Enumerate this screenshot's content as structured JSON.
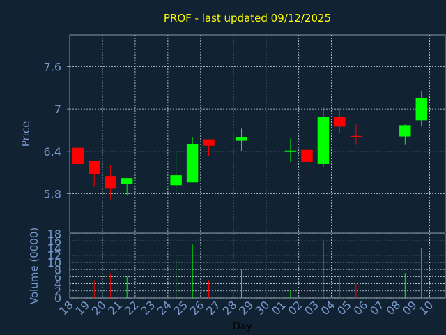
{
  "colors": {
    "background": "#112233",
    "plot_border": "#8899aa",
    "grid": "#ccdddd",
    "up": "#00ff00",
    "down": "#ff0000",
    "neutral": "#ff0000",
    "title": "#ffff00",
    "axis_text": "#7799cc",
    "xlabel_text": "#000000"
  },
  "chart_data": {
    "type": "candlestick",
    "title": "PROF - last updated 09/12/2025",
    "xlabel": "Day",
    "price": {
      "ylabel": "Price",
      "ylim": [
        5.25,
        8.05
      ],
      "yticks": [
        5.8,
        6.4,
        7,
        7.6
      ],
      "ytick_labels": [
        "5.8",
        "6.4",
        "7",
        "7.6"
      ]
    },
    "volume": {
      "ylabel": "Volume (0000)",
      "ylim": [
        0,
        18
      ],
      "yticks": [
        0,
        2,
        4,
        6,
        8,
        10,
        12,
        14,
        16,
        18
      ],
      "ytick_labels": [
        "0",
        "2",
        "4",
        "6",
        "8",
        "10",
        "12",
        "14",
        "16",
        "18"
      ]
    },
    "x_labels": [
      "18",
      "19",
      "20",
      "21",
      "22",
      "23",
      "24",
      "25",
      "26",
      "27",
      "28",
      "29",
      "30",
      "01",
      "02",
      "03",
      "04",
      "05",
      "06",
      "07",
      "08",
      "09",
      "10"
    ],
    "grid_every_other": true,
    "candles": [
      {
        "x": 0,
        "open": 6.45,
        "close": 6.22,
        "high": 6.45,
        "low": 6.22,
        "volume": 0
      },
      {
        "x": 1,
        "open": 6.26,
        "close": 6.08,
        "high": 6.26,
        "low": 5.9,
        "volume": 5
      },
      {
        "x": 2,
        "open": 6.05,
        "close": 5.87,
        "high": 6.2,
        "low": 5.72,
        "volume": 7
      },
      {
        "x": 3,
        "open": 5.94,
        "close": 6.02,
        "high": 6.02,
        "low": 5.78,
        "volume": 6
      },
      {
        "x": 6,
        "open": 5.92,
        "close": 6.06,
        "high": 6.4,
        "low": 5.8,
        "volume": 11
      },
      {
        "x": 7,
        "open": 5.96,
        "close": 6.5,
        "high": 6.6,
        "low": 5.96,
        "volume": 15
      },
      {
        "x": 8,
        "open": 6.57,
        "close": 6.48,
        "high": 6.57,
        "low": 6.33,
        "volume": 5
      },
      {
        "x": 10,
        "open": 6.55,
        "close": 6.6,
        "high": 6.72,
        "low": 6.4,
        "volume": 8
      },
      {
        "x": 13,
        "open": 6.4,
        "close": 6.41,
        "high": 6.58,
        "low": 6.25,
        "volume": 2
      },
      {
        "x": 14,
        "open": 6.42,
        "close": 6.25,
        "high": 6.42,
        "low": 6.07,
        "volume": 4
      },
      {
        "x": 15,
        "open": 6.22,
        "close": 6.89,
        "high": 7.02,
        "low": 6.18,
        "volume": 16
      },
      {
        "x": 16,
        "open": 6.89,
        "close": 6.75,
        "high": 7.01,
        "low": 6.66,
        "volume": 6
      },
      {
        "x": 17,
        "open": 6.61,
        "close": 6.61,
        "high": 6.78,
        "low": 6.49,
        "volume": 4
      },
      {
        "x": 20,
        "open": 6.61,
        "close": 6.77,
        "high": 6.78,
        "low": 6.49,
        "volume": 7
      },
      {
        "x": 21,
        "open": 6.84,
        "close": 7.16,
        "high": 7.25,
        "low": 6.75,
        "volume": 14
      }
    ]
  }
}
